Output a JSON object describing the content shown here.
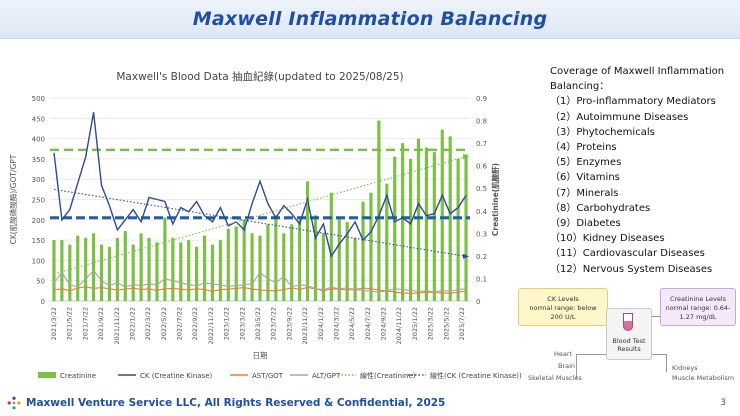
{
  "page": {
    "title": "Maxwell Inflammation Balancing",
    "footer": "Maxwell Venture Service LLC, All Rights Reserved & Confidential, 2025",
    "page_number": "3"
  },
  "coverage": {
    "heading": "Coverage of Maxwell Inflammation Balancing：",
    "items": [
      "（1）Pro-inflammatory Mediators",
      "（2）Autoimmune Diseases",
      "（3）Phytochemicals",
      "（4）Proteins",
      "（5）Enzymes",
      "（6）Vitamins",
      "（7）Minerals",
      "（8）Carbohydrates",
      "（9）Diabetes",
      "（10）Kidney Diseases",
      "（11）Cardiovascular Diseases",
      "（12）Nervous System Diseases"
    ]
  },
  "diagram": {
    "ck_box": [
      "CK Levels",
      "normal range: below",
      "200 U/L"
    ],
    "creatinine_box": [
      "Creatinine Levels",
      "normal range: 0.64-",
      "1.27 mg/dL"
    ],
    "center_box": [
      "Blood Test",
      "Results"
    ],
    "left_organs": [
      "Heart",
      "Brain",
      "Skeletal Muscles"
    ],
    "right_organs": [
      "Kidneys",
      "Muscle Metabolism"
    ],
    "colors": {
      "ck": "#fff6c9",
      "creatinine": "#f4e9fb"
    }
  },
  "chart_data": {
    "type": "bar",
    "title": "Maxwell's Blood Data 抽血紀錄(updated to 2025/08/25)",
    "xlabel": "日期",
    "ylabel": "CK(肌酸磷酸酶)/GOT/GPT",
    "y2label": "Creatinine(肌酸酐)",
    "ylim": [
      0,
      500
    ],
    "y2lim": [
      0,
      0.9
    ],
    "yticks": [
      0,
      50,
      100,
      150,
      200,
      250,
      300,
      350,
      400,
      450,
      500
    ],
    "y2ticks": [
      "0",
      "0.1",
      "0.2",
      "0.3",
      "0.4",
      "0.5",
      "0.6",
      "0.7",
      "0.8",
      "0.9"
    ],
    "x_tick_labels": [
      "2021/3/22",
      "2021/5/22",
      "2021/7/22",
      "2021/9/22",
      "2021/11/22",
      "2022/1/22",
      "2022/3/22",
      "2022/5/22",
      "2022/7/22",
      "2022/9/22",
      "2022/11/22",
      "2023/1/22",
      "2023/3/22",
      "2023/5/22",
      "2023/7/22",
      "2023/9/22",
      "2023/11/22",
      "2024/1/22",
      "2024/3/22",
      "2024/5/22",
      "2024/7/22",
      "2024/9/22",
      "2024/11/22",
      "2025/1/22",
      "2025/3/22",
      "2025/5/22",
      "2025/7/22"
    ],
    "reference_lines": {
      "ck": 205,
      "creatinine": 0.67
    },
    "series": [
      {
        "name": "Creatinine",
        "kind": "bar",
        "axis": "right",
        "color": "#7ac143",
        "values": [
          0.27,
          0.27,
          0.25,
          0.29,
          0.28,
          0.3,
          0.25,
          0.24,
          0.28,
          0.31,
          0.25,
          0.3,
          0.28,
          0.26,
          0.37,
          0.28,
          0.26,
          0.27,
          0.24,
          0.29,
          0.25,
          0.27,
          0.32,
          0.33,
          0.36,
          0.3,
          0.29,
          0.34,
          0.38,
          0.3,
          0.34,
          0.36,
          0.53,
          0.38,
          0.3,
          0.48,
          0.37,
          0.35,
          0.28,
          0.44,
          0.48,
          0.8,
          0.52,
          0.64,
          0.7,
          0.63,
          0.72,
          0.68,
          0.66,
          0.76,
          0.73,
          0.63,
          0.65
        ]
      },
      {
        "name": "CK (Creatine Kinase)",
        "kind": "line",
        "axis": "left",
        "color": "#2e4a8f",
        "values": [
          365,
          200,
          225,
          290,
          355,
          465,
          285,
          235,
          175,
          200,
          225,
          195,
          255,
          250,
          245,
          190,
          230,
          220,
          245,
          210,
          195,
          230,
          185,
          195,
          175,
          240,
          295,
          240,
          205,
          235,
          215,
          190,
          250,
          155,
          190,
          110,
          140,
          165,
          195,
          150,
          170,
          210,
          260,
          195,
          205,
          190,
          240,
          210,
          215,
          260,
          215,
          230,
          260
        ]
      },
      {
        "name": "AST/GOT",
        "kind": "line",
        "axis": "left",
        "color": "#ed7d31",
        "values": [
          27,
          30,
          25,
          32,
          35,
          31,
          33,
          30,
          27,
          29,
          32,
          28,
          30,
          26,
          30,
          31,
          29,
          27,
          30,
          28,
          24,
          28,
          29,
          31,
          33,
          29,
          27,
          26,
          25,
          28,
          32,
          29,
          33,
          30,
          25,
          30,
          29,
          27,
          28,
          32,
          30,
          27,
          25,
          22,
          20,
          19,
          20,
          22,
          21,
          20,
          19,
          22,
          24
        ]
      },
      {
        "name": "ALT/GPT",
        "kind": "line",
        "axis": "left",
        "color": "#a5a5a5",
        "values": [
          45,
          70,
          40,
          35,
          55,
          75,
          50,
          38,
          45,
          35,
          40,
          38,
          42,
          40,
          55,
          50,
          45,
          40,
          38,
          44,
          42,
          40,
          36,
          38,
          40,
          42,
          70,
          55,
          45,
          60,
          35,
          40,
          38,
          30,
          28,
          34,
          30,
          32,
          28,
          26,
          24,
          22,
          25,
          30,
          28,
          26,
          24,
          25,
          22,
          26,
          24,
          28,
          30
        ]
      },
      {
        "name": "線性(Creatinine)",
        "kind": "trend",
        "axis": "right",
        "color": "#7ac143",
        "from": 0.12,
        "to": 0.64
      },
      {
        "name": "線性(CK (Creatine Kinase))",
        "kind": "trend",
        "axis": "left",
        "color": "#2e4a8f",
        "from": 275,
        "to": 110
      }
    ],
    "legend_position": "bottom"
  }
}
